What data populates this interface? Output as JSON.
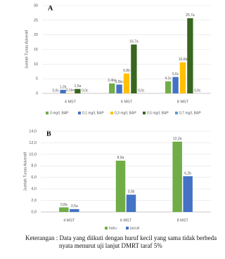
{
  "chart_data": [
    {
      "type": "bar",
      "panel_label": "A",
      "y_label": "Jumlah Tunas Adventif",
      "categories": [
        "4 MST",
        "6 MST",
        "8 MST"
      ],
      "series": [
        {
          "name": "0 mg/L BAP",
          "color": "#70ad47",
          "values": [
            0,
            3.4,
            4.1
          ],
          "value_labels": [
            "0,0c",
            "3,4bc",
            "4,1c"
          ]
        },
        {
          "name": "0,1 mg/L BAP",
          "color": "#4472c4",
          "values": [
            1.2,
            3.0,
            5.6
          ],
          "value_labels": [
            "1,2b",
            "3,0bc",
            "5,6c"
          ]
        },
        {
          "name": "0,3 mg/L BAP",
          "color": "#ffc000",
          "values": [
            0.1,
            6.8,
            10.6
          ],
          "value_labels": [
            "0,1bc",
            "6,8b",
            "10,6b"
          ]
        },
        {
          "name": "0,5 mg/L BAP",
          "color": "#38661e",
          "values": [
            1.5,
            16.7,
            25.7
          ],
          "value_labels": [
            "1,5a",
            "16,7a",
            "25,7a"
          ]
        },
        {
          "name": "0,7 mg/L BAP",
          "color": "#5b9bd5",
          "values": [
            0,
            0,
            0
          ],
          "value_labels": [
            "0,0c",
            "0,0c",
            "0,0c"
          ]
        }
      ],
      "ylim": [
        0,
        30
      ],
      "yticks": [
        0,
        5,
        10,
        15,
        20,
        25,
        30
      ],
      "grid": true
    },
    {
      "type": "bar",
      "panel_label": "B",
      "y_label": "Jumlah Tunas Adventif",
      "categories": [
        "4 MST",
        "6 MST",
        "8 MST"
      ],
      "series": [
        {
          "name": "buku",
          "color": "#70ad47",
          "values": [
            0.8,
            8.9,
            12.2
          ],
          "value_labels": [
            "0,8a",
            "8,9a",
            "12,2a"
          ]
        },
        {
          "name": "pucuk",
          "color": "#4472c4",
          "values": [
            0.5,
            3.0,
            6.2
          ],
          "value_labels": [
            "0,5a",
            "3,0b",
            "6,2b"
          ]
        }
      ],
      "ylim": [
        0,
        14
      ],
      "yticks": [
        {
          "value": 0,
          "label": "0,0"
        },
        {
          "value": 2,
          "label": "2,0"
        },
        {
          "value": 4,
          "label": "4,0"
        },
        {
          "value": 6,
          "label": "6,0"
        },
        {
          "value": 8,
          "label": "8,0"
        },
        {
          "value": 10,
          "label": "10,0"
        },
        {
          "value": 12,
          "label": "12,0"
        },
        {
          "value": 14,
          "label": "14,0"
        }
      ],
      "grid": true
    }
  ],
  "caption": {
    "lines": [
      "Keterangan : Data yang diikuti dengan huruf kecil yang sama tidak berbeda",
      "nyata menurut uji lanjut DMRT taraf 5%"
    ]
  }
}
